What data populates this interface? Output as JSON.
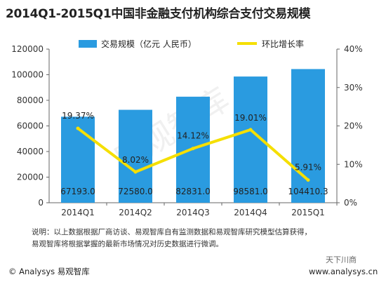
{
  "title": "2014Q1-2015Q1中国非金融支付机构综合支付交易规模",
  "note_line1": "说明：以上数据根据厂商访谈、易观智库自有监测数据和易观智库研究模型估算获得，",
  "note_line2": "易观智库将根据掌握的最新市场情况对历史数据进行微调。",
  "footer_copyright": "© Analysys 易观智库",
  "footer_weibo": "天下川商",
  "footer_url": "www.analysys.cn",
  "watermark": "易观智库",
  "colors": {
    "bar": "#2a9be0",
    "line": "#f5df00",
    "axis": "#666666",
    "text": "#333333"
  },
  "chart_data": {
    "type": "bar",
    "categories": [
      "2014Q1",
      "2014Q2",
      "2014Q3",
      "2014Q4",
      "2015Q1"
    ],
    "series": [
      {
        "name": "交易规模（亿元 人民币）",
        "type": "bar",
        "axis": "left",
        "values": [
          67193.0,
          72580.0,
          82831.0,
          98581.0,
          104410.3
        ],
        "labels": [
          "67193.0",
          "72580.0",
          "82831.0",
          "98581.0",
          "104410.3"
        ]
      },
      {
        "name": "环比增长率",
        "type": "line",
        "axis": "right",
        "values": [
          19.37,
          8.02,
          14.12,
          19.01,
          5.91
        ],
        "labels": [
          "19.37%",
          "8.02%",
          "14.12%",
          "19.01%",
          "5.91%"
        ]
      }
    ],
    "y_left": {
      "min": 0,
      "max": 120000,
      "ticks": [
        "0",
        "20000",
        "40000",
        "60000",
        "80000",
        "100000",
        "120000"
      ]
    },
    "y_right": {
      "min": 0,
      "max": 40,
      "ticks": [
        "0%",
        "10%",
        "20%",
        "30%",
        "40%"
      ]
    },
    "legend_position": "top",
    "grid": false
  }
}
